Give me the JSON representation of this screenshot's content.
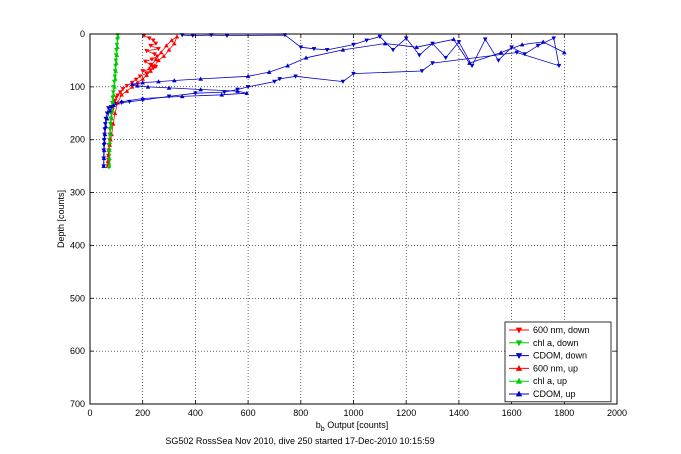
{
  "chart_data": {
    "type": "scatter",
    "xlabel_main": "b",
    "xlabel_sub": "b",
    "xlabel_rest": " Output [counts]",
    "ylabel": "Depth [counts]",
    "caption": "SG502 RossSea Nov 2010, dive 250 started 17-Dec-2010 10:15:59",
    "xlim": [
      0,
      2000
    ],
    "ylim": [
      0,
      700
    ],
    "y_reversed": true,
    "grid": true,
    "legend_position": "bottom-right",
    "x_ticks": [
      "0",
      "200",
      "400",
      "600",
      "800",
      "1000",
      "1200",
      "1400",
      "1600",
      "1800",
      "2000"
    ],
    "y_ticks": [
      "0",
      "100",
      "200",
      "300",
      "400",
      "500",
      "600",
      "700"
    ],
    "series": [
      {
        "name": "600 nm, down",
        "color": "#ff0000",
        "marker": "triangle-down",
        "x": [
          205,
          225,
          240,
          250,
          230,
          260,
          215,
          245,
          255,
          235,
          210,
          230,
          250,
          240,
          200,
          215,
          190,
          175,
          160,
          140,
          125,
          115,
          105,
          100,
          95,
          90,
          88,
          85,
          82,
          80,
          78,
          76,
          75,
          74,
          72,
          71,
          70,
          70,
          69,
          68
        ],
        "y": [
          3,
          8,
          12,
          18,
          22,
          28,
          32,
          38,
          42,
          48,
          52,
          58,
          62,
          65,
          70,
          74,
          80,
          86,
          92,
          98,
          104,
          110,
          116,
          120,
          126,
          132,
          138,
          144,
          150,
          160,
          170,
          180,
          190,
          200,
          210,
          220,
          230,
          238,
          245,
          250
        ]
      },
      {
        "name": "chl a, down",
        "color": "#00cc00",
        "marker": "triangle-down",
        "x": [
          105,
          104,
          102,
          100,
          99,
          98,
          97,
          95,
          94,
          92,
          90,
          88,
          86,
          84,
          82,
          80,
          79,
          78,
          77,
          76,
          75,
          74,
          74,
          73,
          73,
          72,
          72
        ],
        "y": [
          2,
          10,
          20,
          30,
          40,
          50,
          60,
          70,
          80,
          90,
          100,
          110,
          120,
          130,
          140,
          150,
          160,
          170,
          180,
          190,
          200,
          210,
          220,
          230,
          240,
          248,
          252
        ]
      },
      {
        "name": "CDOM, down",
        "color": "#0000cc",
        "marker": "triangle-down",
        "x": [
          350,
          390,
          460,
          520,
          740,
          800,
          850,
          900,
          1000,
          1050,
          1100,
          1150,
          1200,
          1250,
          1300,
          1350,
          1400,
          1450,
          1500,
          1550,
          1600,
          1650,
          1700,
          1760,
          1780,
          1620,
          1300,
          1260,
          1000,
          960,
          780,
          720,
          700,
          600,
          560,
          510,
          400,
          300,
          200,
          150,
          120,
          100,
          90,
          80,
          70,
          65,
          60,
          58,
          56,
          55,
          54,
          53,
          52,
          52,
          52
        ],
        "y": [
          2,
          3,
          2,
          3,
          2,
          25,
          28,
          30,
          20,
          12,
          5,
          30,
          8,
          40,
          18,
          45,
          15,
          60,
          10,
          50,
          25,
          38,
          22,
          8,
          60,
          35,
          55,
          70,
          75,
          90,
          80,
          85,
          90,
          100,
          105,
          110,
          112,
          118,
          125,
          128,
          130,
          132,
          135,
          138,
          140,
          150,
          160,
          170,
          180,
          190,
          200,
          210,
          220,
          235,
          250
        ]
      },
      {
        "name": "600 nm, up",
        "color": "#ff0000",
        "marker": "triangle-up",
        "x": [
          68,
          69,
          70,
          72,
          75,
          78,
          82,
          88,
          95,
          105,
          120,
          140,
          160,
          180,
          200,
          215,
          230,
          245,
          260,
          280,
          300,
          320,
          330,
          310,
          290,
          270,
          250,
          235,
          225
        ],
        "y": [
          250,
          240,
          230,
          220,
          210,
          200,
          190,
          170,
          150,
          130,
          115,
          108,
          100,
          92,
          85,
          78,
          70,
          60,
          50,
          42,
          30,
          18,
          5,
          12,
          22,
          35,
          48,
          58,
          65
        ]
      },
      {
        "name": "chl a, up",
        "color": "#00cc00",
        "marker": "triangle-up",
        "x": [
          72,
          73,
          74,
          75,
          77,
          79,
          82,
          85,
          88,
          90,
          93,
          96,
          98,
          100,
          102,
          104,
          106
        ],
        "y": [
          250,
          235,
          220,
          205,
          190,
          175,
          160,
          145,
          130,
          115,
          100,
          85,
          70,
          55,
          40,
          25,
          5
        ]
      },
      {
        "name": "CDOM, up",
        "color": "#0000cc",
        "marker": "triangle-up",
        "x": [
          52,
          53,
          54,
          55,
          57,
          60,
          65,
          75,
          90,
          120,
          200,
          350,
          500,
          595,
          560,
          420,
          300,
          220,
          180,
          160,
          200,
          260,
          320,
          420,
          600,
          680,
          750,
          820,
          960,
          1120,
          1240,
          1380,
          1440,
          1560,
          1640,
          1720,
          1800
        ],
        "y": [
          250,
          235,
          220,
          205,
          190,
          175,
          160,
          145,
          135,
          128,
          122,
          118,
          115,
          112,
          108,
          105,
          102,
          100,
          98,
          95,
          92,
          90,
          88,
          85,
          80,
          72,
          60,
          45,
          30,
          18,
          25,
          10,
          55,
          35,
          20,
          15,
          35
        ]
      }
    ]
  }
}
